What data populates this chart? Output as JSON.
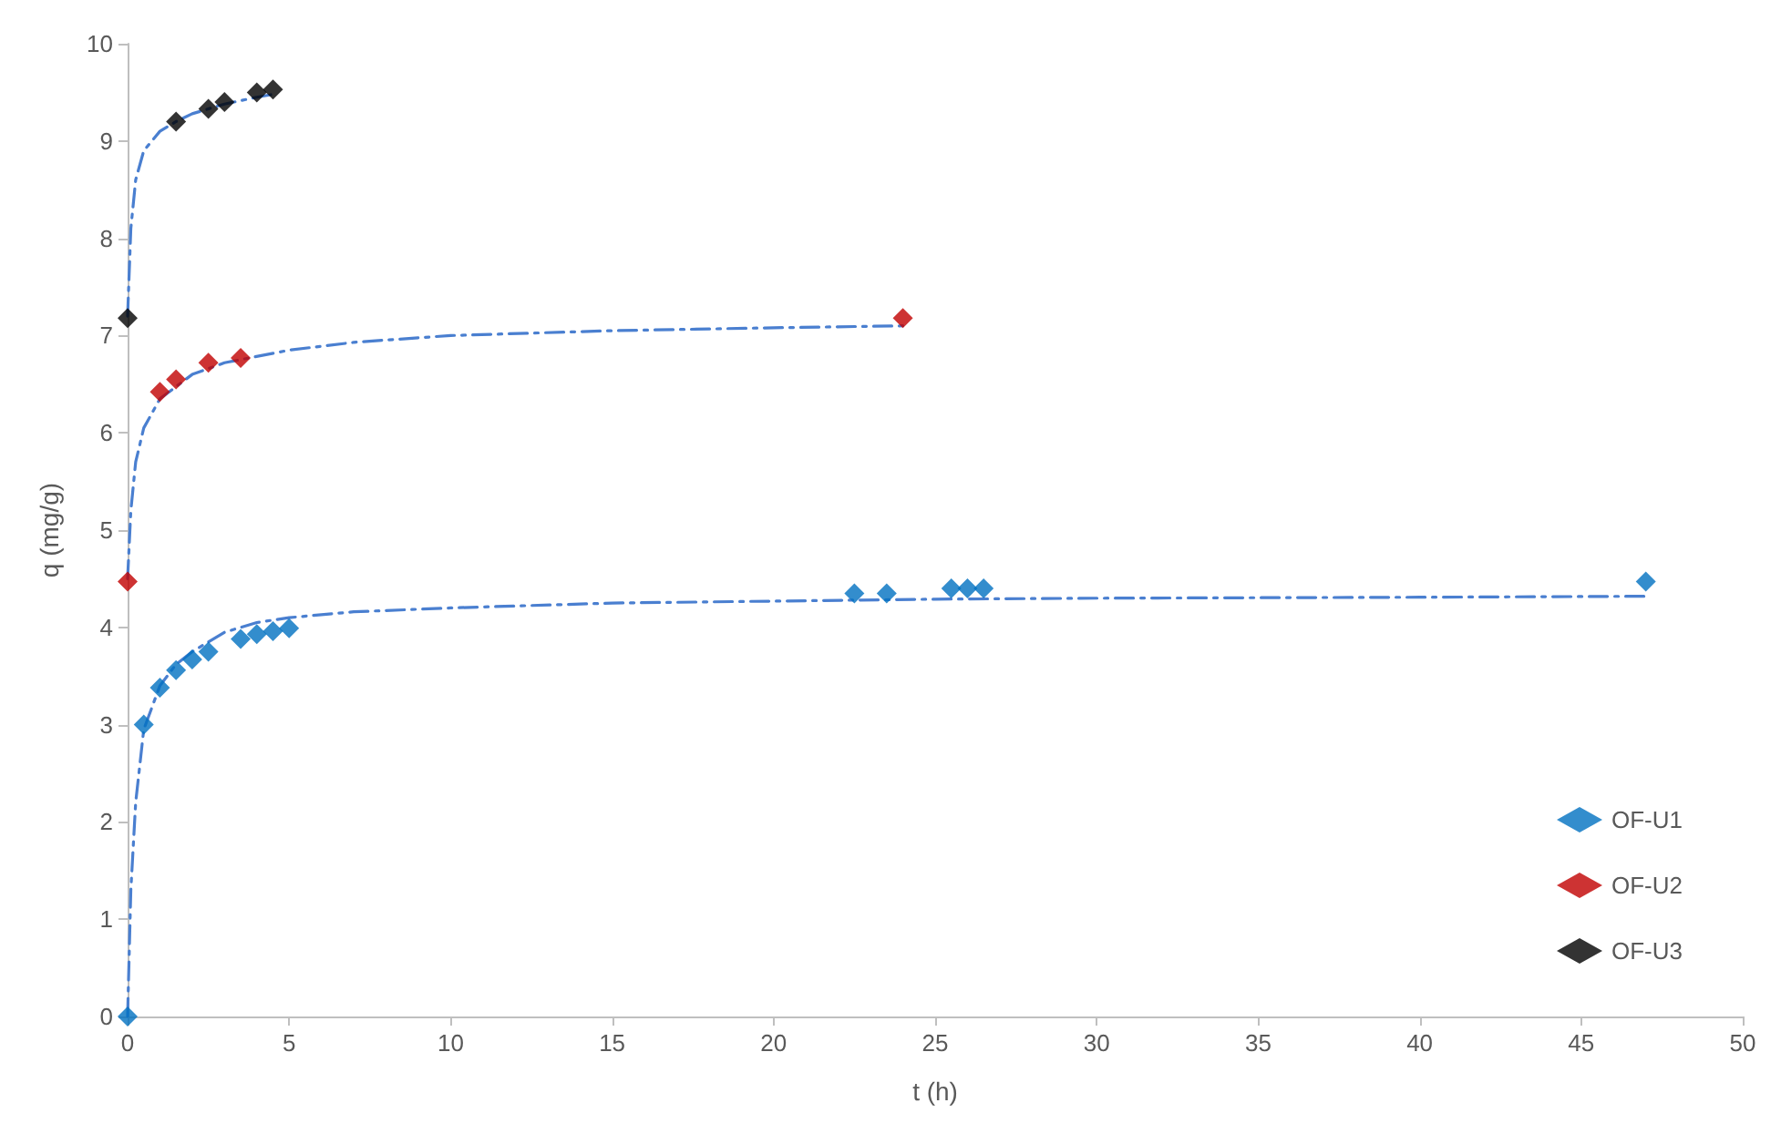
{
  "chart_data": {
    "type": "scatter",
    "xlabel": "t (h)",
    "ylabel": "q (mg/g)",
    "xlim": [
      0,
      50
    ],
    "xticks": [
      0,
      5,
      10,
      15,
      20,
      25,
      30,
      35,
      40,
      45,
      50
    ],
    "ylim": [
      0,
      10
    ],
    "yticks": [
      0,
      1,
      2,
      3,
      4,
      5,
      6,
      7,
      8,
      9,
      10
    ],
    "grid": false,
    "legend": "right",
    "marker": "diamond",
    "series": [
      {
        "name": "OF-U1",
        "color": "#0070c0",
        "x": [
          0,
          0.5,
          1,
          1.5,
          2,
          2.5,
          3.5,
          4,
          4.5,
          5,
          22.5,
          23.5,
          25.5,
          26,
          26.5,
          47
        ],
        "values": [
          0,
          3.0,
          3.38,
          3.56,
          3.67,
          3.75,
          3.88,
          3.93,
          3.96,
          3.99,
          4.35,
          4.35,
          4.4,
          4.4,
          4.4,
          4.47
        ]
      },
      {
        "name": "OF-U2",
        "color": "#c00000",
        "x": [
          0,
          1,
          1.5,
          2.5,
          3.5,
          24
        ],
        "values": [
          4.47,
          6.42,
          6.55,
          6.72,
          6.77,
          7.18
        ]
      },
      {
        "name": "OF-U3",
        "color": "#000000",
        "x": [
          0,
          1.5,
          2.5,
          3,
          4,
          4.5
        ],
        "values": [
          7.18,
          9.2,
          9.33,
          9.4,
          9.5,
          9.53
        ]
      },
      {
        "type": "line",
        "marker": "none",
        "line_style": "dashed",
        "color": "#4a7fd0",
        "x": [
          0,
          0.1,
          0.25,
          0.5,
          1,
          1.5,
          2,
          3,
          4,
          5,
          7,
          10,
          15,
          20,
          25,
          30,
          40,
          47
        ],
        "values": [
          0,
          1.3,
          2.2,
          2.95,
          3.4,
          3.62,
          3.75,
          3.95,
          4.05,
          4.1,
          4.16,
          4.2,
          4.25,
          4.27,
          4.29,
          4.3,
          4.31,
          4.32
        ]
      },
      {
        "type": "line",
        "marker": "none",
        "line_style": "dashed",
        "color": "#4a7fd0",
        "x": [
          0,
          0.1,
          0.25,
          0.5,
          1,
          2,
          3,
          5,
          7,
          10,
          15,
          20,
          24
        ],
        "values": [
          4.5,
          5.2,
          5.7,
          6.05,
          6.35,
          6.6,
          6.72,
          6.85,
          6.93,
          7.0,
          7.05,
          7.08,
          7.1
        ]
      },
      {
        "type": "line",
        "marker": "none",
        "line_style": "dashed",
        "color": "#4a7fd0",
        "x": [
          0,
          0.1,
          0.25,
          0.5,
          1,
          1.5,
          2,
          3,
          4,
          4.5
        ],
        "values": [
          7.2,
          8.1,
          8.6,
          8.9,
          9.1,
          9.2,
          9.28,
          9.38,
          9.45,
          9.48
        ]
      }
    ]
  }
}
